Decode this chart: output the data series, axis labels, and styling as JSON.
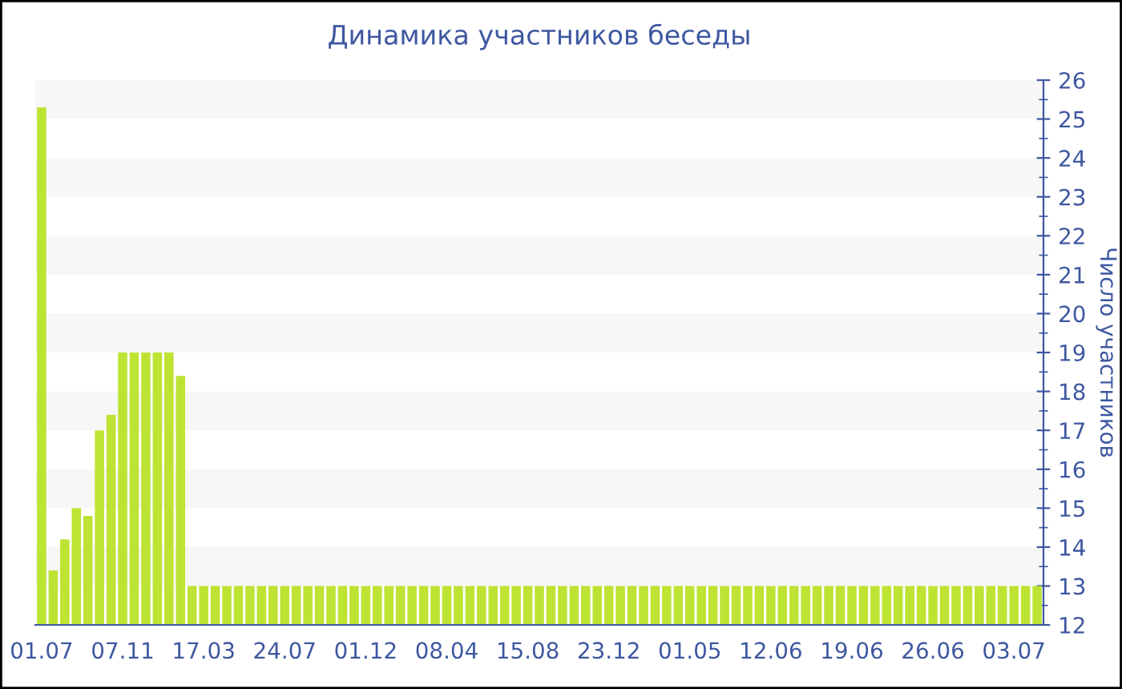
{
  "chart_data": {
    "type": "bar",
    "title": "Динамика участников беседы",
    "ylabel": "Число участников",
    "categories": [
      "01.07",
      null,
      null,
      null,
      null,
      null,
      null,
      "07.11",
      null,
      null,
      null,
      null,
      null,
      null,
      "17.03",
      null,
      null,
      null,
      null,
      null,
      null,
      "24.07",
      null,
      null,
      null,
      null,
      null,
      null,
      "01.12",
      null,
      null,
      null,
      null,
      null,
      null,
      "08.04",
      null,
      null,
      null,
      null,
      null,
      null,
      "15.08",
      null,
      null,
      null,
      null,
      null,
      null,
      "23.12",
      null,
      null,
      null,
      null,
      null,
      null,
      "01.05",
      null,
      null,
      null,
      null,
      null,
      null,
      "12.06",
      null,
      null,
      null,
      null,
      null,
      null,
      "19.06",
      null,
      null,
      null,
      null,
      null,
      null,
      "26.06",
      null,
      null,
      null,
      null,
      null,
      null,
      "03.07",
      null,
      null
    ],
    "values": [
      25.3,
      13.4,
      14.2,
      15.0,
      14.8,
      17.0,
      17.4,
      19,
      19,
      19,
      19,
      19,
      18.4,
      13,
      13,
      13,
      13,
      13,
      13,
      13,
      13,
      13,
      13,
      13,
      13,
      13,
      13,
      13,
      13,
      13,
      13,
      13,
      13,
      13,
      13,
      13,
      13,
      13,
      13,
      13,
      13,
      13,
      13,
      13,
      13,
      13,
      13,
      13,
      13,
      13,
      13,
      13,
      13,
      13,
      13,
      13,
      13,
      13,
      13,
      13,
      13,
      13,
      13,
      13,
      13,
      13,
      13,
      13,
      13,
      13,
      13,
      13,
      13,
      13,
      13,
      13,
      13,
      13,
      13,
      13,
      13,
      13,
      13,
      13,
      13,
      13,
      13
    ],
    "color": "#bde333",
    "ylim": [
      12,
      26
    ],
    "yticks": [
      12,
      13,
      14,
      15,
      16,
      17,
      18,
      19,
      20,
      21,
      22,
      23,
      24,
      25,
      26
    ],
    "bands": [
      {
        "axis": "y",
        "from": 13,
        "to": 14,
        "color": "#f7f7f7"
      },
      {
        "axis": "y",
        "from": 15,
        "to": 16,
        "color": "#f7f7f7"
      },
      {
        "axis": "y",
        "from": 17,
        "to": 18,
        "color": "#f7f7f7"
      },
      {
        "axis": "y",
        "from": 19,
        "to": 20,
        "color": "#f7f7f7"
      },
      {
        "axis": "y",
        "from": 21,
        "to": 22,
        "color": "#f7f7f7"
      },
      {
        "axis": "y",
        "from": 23,
        "to": 24,
        "color": "#f7f7f7"
      },
      {
        "axis": "y",
        "from": 25,
        "to": 26,
        "color": "#f7f7f7"
      }
    ],
    "legend": false
  }
}
